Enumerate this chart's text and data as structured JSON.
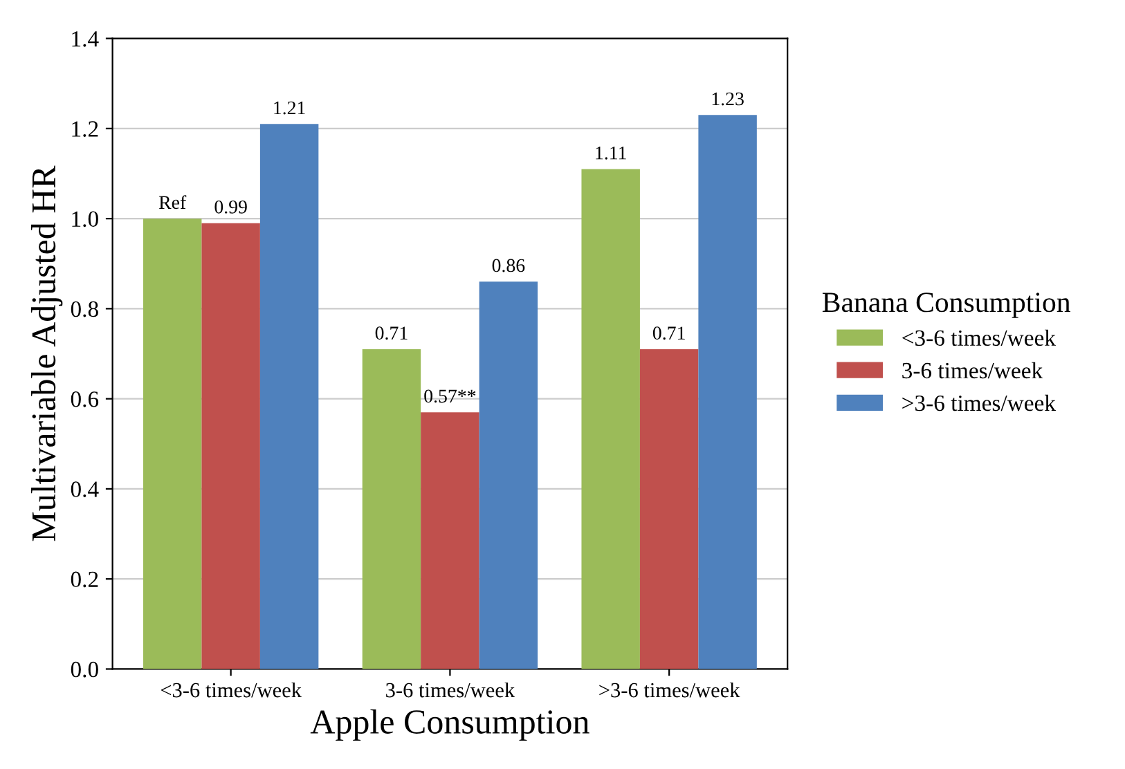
{
  "chart_data": {
    "type": "bar",
    "xlabel": "Apple Consumption",
    "ylabel": "Multivariable Adjusted HR",
    "legend_title": "Banana Consumption",
    "categories": [
      "<3-6 times/week",
      "3-6 times/week",
      ">3-6 times/week"
    ],
    "series": [
      {
        "name": "<3-6 times/week",
        "color": "#9bbb59",
        "values": [
          1.0,
          0.71,
          1.11
        ],
        "value_labels": [
          "Ref",
          "0.71",
          "1.11"
        ]
      },
      {
        "name": "3-6 times/week",
        "color": "#c0504d",
        "values": [
          0.99,
          0.57,
          0.71
        ],
        "value_labels": [
          "0.99",
          "0.57**",
          "0.71"
        ]
      },
      {
        "name": ">3-6 times/week",
        "color": "#4f81bd",
        "values": [
          1.21,
          0.86,
          1.23
        ],
        "value_labels": [
          "1.21",
          "0.86",
          "1.23"
        ]
      }
    ],
    "ylim": [
      0,
      1.4
    ],
    "yticks": [
      {
        "value": 0,
        "label": "0.0"
      },
      0.2,
      0.4,
      0.6,
      0.8,
      {
        "value": 1,
        "label": "1.0"
      },
      1.2,
      1.4
    ],
    "grid": "y",
    "legend": "right"
  }
}
